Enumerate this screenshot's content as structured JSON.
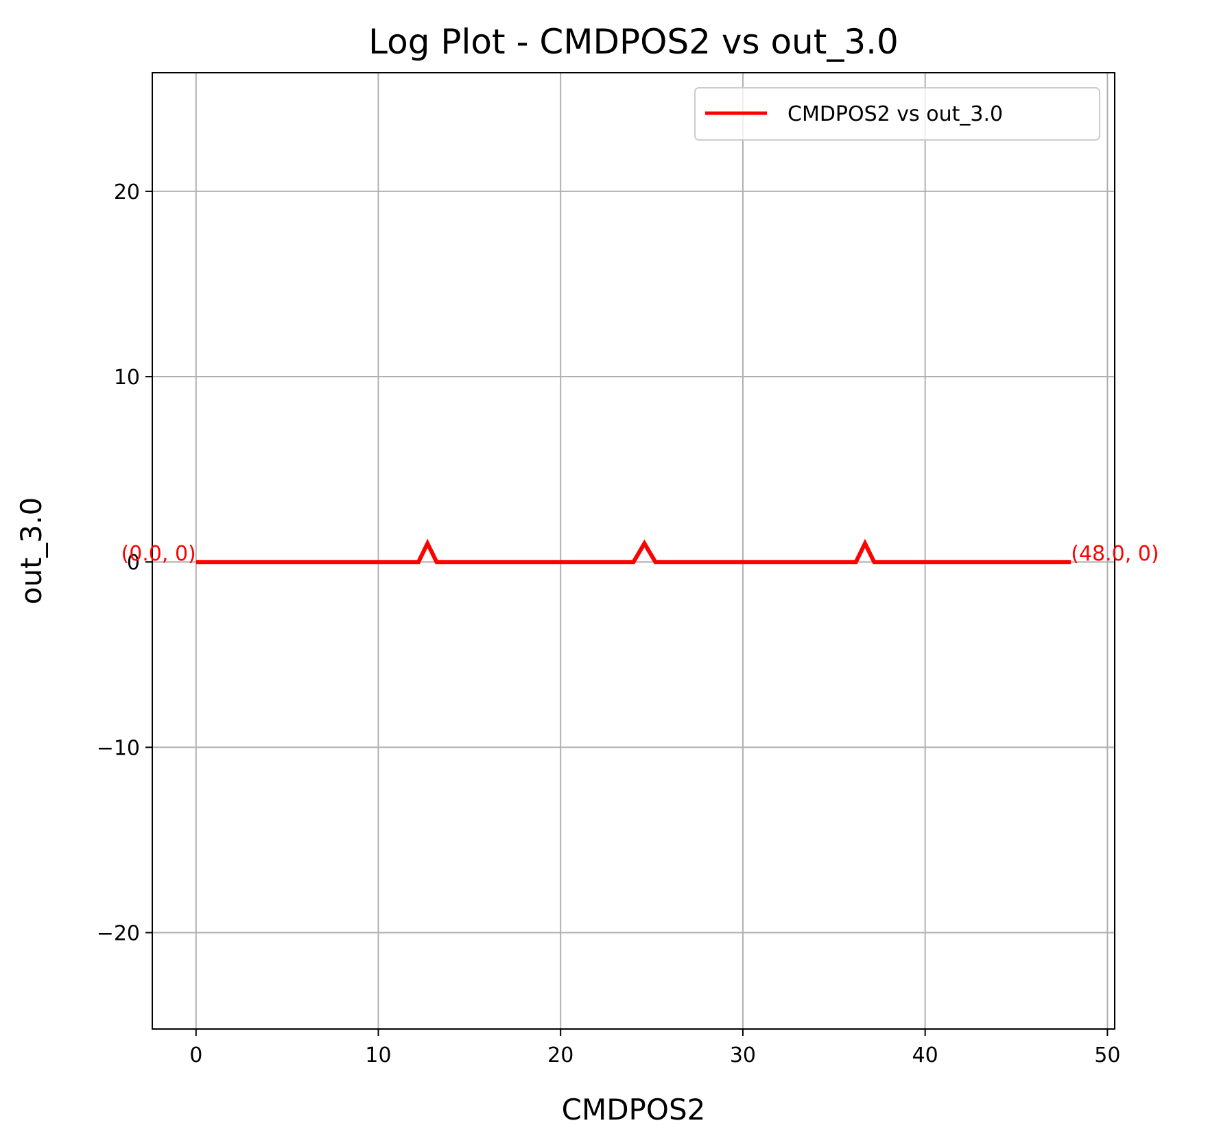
{
  "chart_data": {
    "type": "line",
    "title": "Log Plot - CMDPOS2 vs out_3.0",
    "xlabel": "CMDPOS2",
    "ylabel": "out_3.0",
    "xlim": [
      -2.4,
      50.4
    ],
    "ylim": [
      -25.2,
      26.4
    ],
    "xticks": [
      0,
      10,
      20,
      30,
      40,
      50
    ],
    "yticks": [
      -20,
      -10,
      0,
      10,
      20
    ],
    "xtick_labels": [
      "0",
      "10",
      "20",
      "30",
      "40",
      "50"
    ],
    "ytick_labels": [
      "−20",
      "−10",
      "0",
      "10",
      "20"
    ],
    "grid": true,
    "legend_position": "top-right",
    "series": [
      {
        "name": "CMDPOS2 vs out_3.0",
        "color": "#ff0000",
        "x": [
          0,
          12.2,
          12.7,
          13.2,
          24.0,
          24.6,
          25.2,
          36.2,
          36.7,
          37.2,
          48.0
        ],
        "y": [
          0,
          0,
          1,
          0,
          0,
          1,
          0,
          0,
          1,
          0,
          0
        ]
      }
    ],
    "annotations": [
      {
        "text": "(0.0, 0)",
        "x": 0,
        "y": 0,
        "anchor": "end",
        "color": "#ff0000"
      },
      {
        "text": "(48.0, 0)",
        "x": 48,
        "y": 0,
        "anchor": "start",
        "color": "#ff0000"
      }
    ]
  }
}
